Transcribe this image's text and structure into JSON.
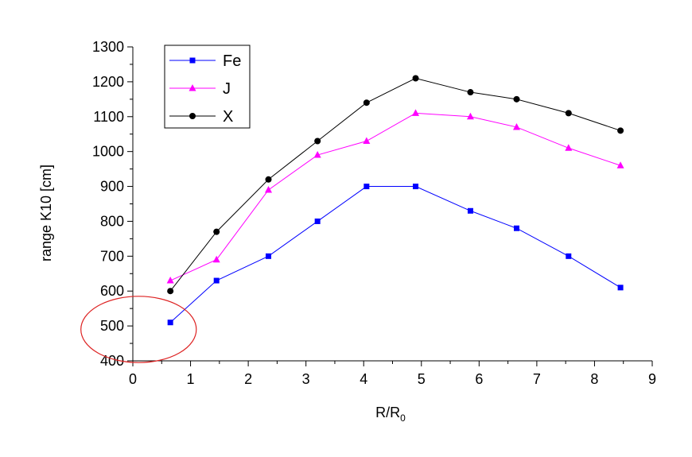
{
  "chart_data": {
    "type": "line",
    "title": "",
    "xlabel": "R/R",
    "xlabel_subscript": "0",
    "ylabel": "range K10 [cm]",
    "xlim": [
      0,
      9
    ],
    "ylim": [
      400,
      1300
    ],
    "x_ticks": [
      "0",
      "1",
      "2",
      "3",
      "4",
      "5",
      "6",
      "7",
      "8",
      "9"
    ],
    "y_ticks": [
      "400",
      "500",
      "600",
      "700",
      "800",
      "900",
      "1000",
      "1100",
      "1200",
      "1300"
    ],
    "grid": false,
    "legend_position": "top-left",
    "x": [
      0.65,
      1.45,
      2.35,
      3.2,
      4.05,
      4.9,
      5.85,
      6.65,
      7.55,
      8.45
    ],
    "series": [
      {
        "name": "Fe",
        "color": "#0000ff",
        "marker": "square",
        "values": [
          510,
          630,
          700,
          800,
          900,
          900,
          830,
          780,
          700,
          610
        ]
      },
      {
        "name": "J",
        "color": "#ff00ff",
        "marker": "triangle",
        "values": [
          630,
          690,
          890,
          990,
          1030,
          1110,
          1100,
          1070,
          1010,
          960
        ]
      },
      {
        "name": "X",
        "color": "#000000",
        "marker": "circle",
        "values": [
          600,
          770,
          920,
          1030,
          1140,
          1210,
          1170,
          1150,
          1110,
          1060
        ]
      }
    ],
    "annotation": {
      "shape": "ellipse",
      "color": "#dd2222",
      "center_x": 0.1,
      "center_y": 490,
      "radius_x": 1.0,
      "radius_y": 95
    }
  }
}
